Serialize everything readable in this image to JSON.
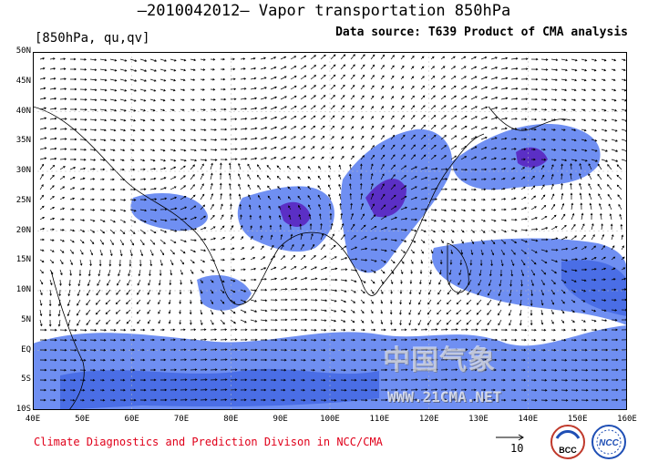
{
  "header": {
    "title": "—2010042012— Vapor transportation 850hPa",
    "units": "[850hPa, qu,qv]",
    "source": "Data source: T639 Product of CMA analysis"
  },
  "map": {
    "lat_labels": [
      "50N",
      "45N",
      "40N",
      "35N",
      "30N",
      "25N",
      "20N",
      "15N",
      "10N",
      "5N",
      "EQ",
      "5S",
      "10S"
    ],
    "lon_labels": [
      "40E",
      "50E",
      "60E",
      "70E",
      "80E",
      "90E",
      "100E",
      "110E",
      "120E",
      "130E",
      "140E",
      "150E",
      "160E"
    ],
    "lat_range": [
      -10,
      50
    ],
    "lon_range": [
      40,
      160
    ],
    "colors": {
      "shade_light": "#6f8ff2",
      "shade_mid": "#4a6ee6",
      "shade_dark": "#5b2fc5",
      "core": "#a0206a",
      "arrow": "#000000"
    }
  },
  "footer": {
    "credit": "Climate Diagnostics and Prediction Divison in NCC/CMA",
    "reference_vector_label": "10",
    "logo_left": "BCC",
    "logo_right": "NCC"
  },
  "watermark": {
    "main": "中国气象",
    "sub": "WWW.21CMA.NET"
  }
}
